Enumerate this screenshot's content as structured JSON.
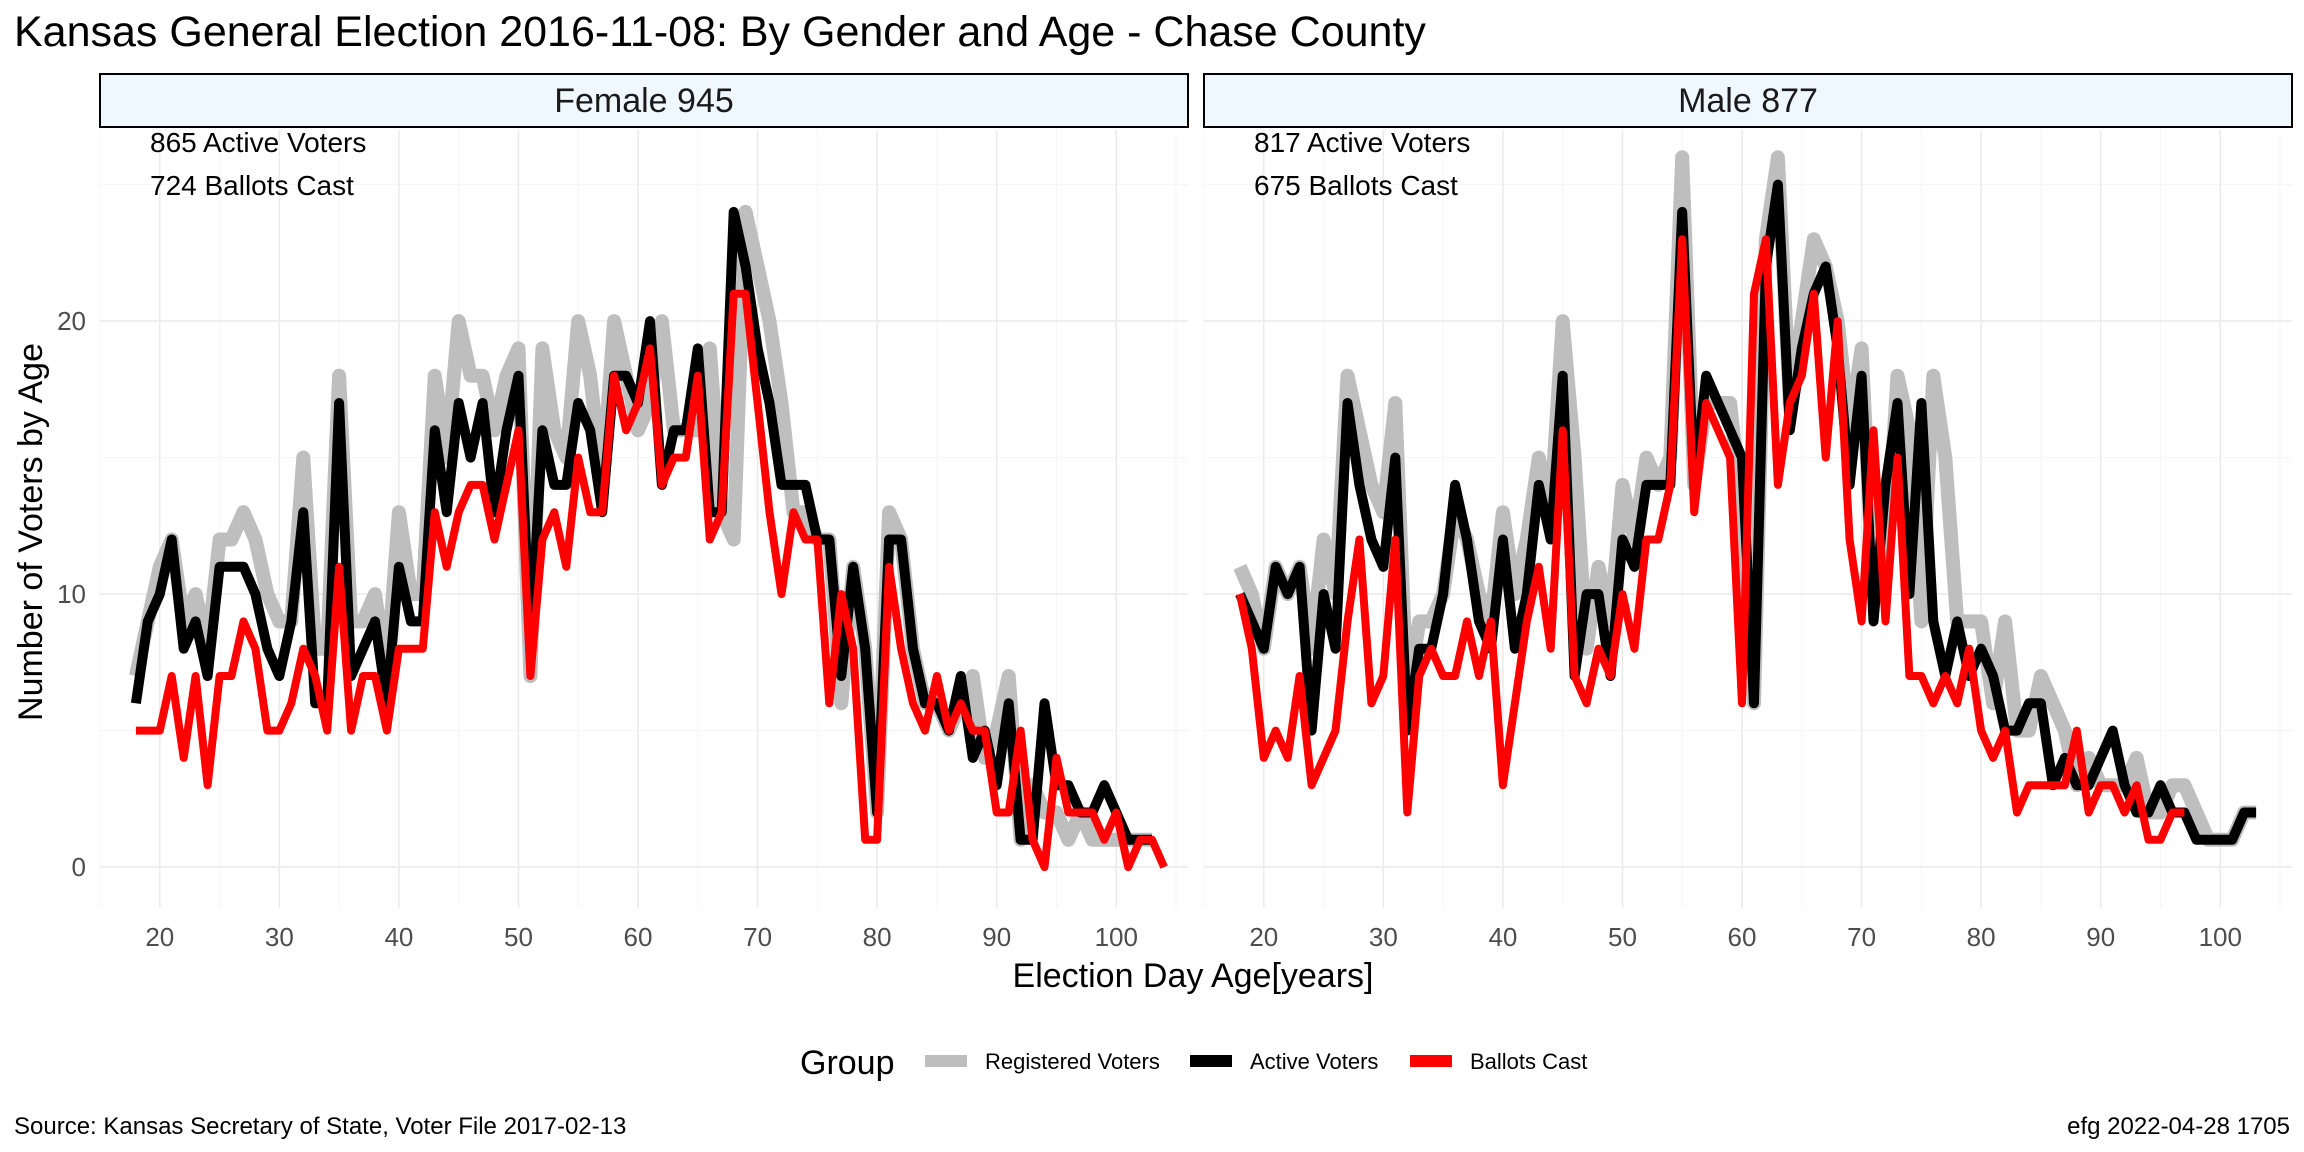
{
  "chart_data": {
    "type": "line",
    "title": "Kansas General Election 2016-11-08:  By Gender and Age - Chase County",
    "xlabel": "Election Day Age[years]",
    "ylabel": "Number of Voters by Age",
    "xlim": [
      18,
      103
    ],
    "ylim": [
      0,
      26
    ],
    "x_ticks": [
      20,
      30,
      40,
      50,
      60,
      70,
      80,
      90,
      100
    ],
    "y_ticks": [
      0,
      10,
      20
    ],
    "grid": true,
    "legend": {
      "position": "bottom",
      "title": "Group",
      "entries": [
        {
          "label": "Registered Voters",
          "color": "#bebebe"
        },
        {
          "label": "Active Voters",
          "color": "#000000"
        },
        {
          "label": "Ballots Cast",
          "color": "#ff0000"
        }
      ]
    },
    "caption_left": "Source:  Kansas Secretary of State, Voter File  2017-02-13",
    "caption_right": "efg 2022-04-28 1705",
    "panels": [
      {
        "strip": "Female 945",
        "annotations": [
          "865 Active Voters",
          "724 Ballots Cast"
        ],
        "series": [
          {
            "name": "Registered Voters",
            "color": "#bebebe",
            "x0": 18,
            "values": [
              7,
              9,
              11,
              12,
              9,
              10,
              8,
              12,
              12,
              13,
              12,
              10,
              9,
              9,
              15,
              8,
              8,
              18,
              9,
              9,
              10,
              7,
              13,
              10,
              10,
              18,
              15,
              20,
              18,
              18,
              16,
              18,
              19,
              7,
              19,
              16,
              15,
              20,
              18,
              14,
              20,
              18,
              16,
              17,
              20,
              16,
              16,
              16,
              19,
              13,
              12,
              24,
              22,
              20,
              17,
              13,
              13,
              12,
              12,
              6,
              11,
              8,
              2,
              13,
              12,
              8,
              6,
              6,
              5,
              6,
              7,
              4,
              5,
              7,
              1,
              3,
              2,
              2,
              1,
              2,
              1,
              1,
              1,
              1,
              1,
              1
            ]
          },
          {
            "name": "Active Voters",
            "color": "#000000",
            "x0": 18,
            "values": [
              6,
              9,
              10,
              12,
              8,
              9,
              7,
              11,
              11,
              11,
              10,
              8,
              7,
              9,
              13,
              6,
              6,
              17,
              7,
              8,
              9,
              6,
              11,
              9,
              9,
              16,
              13,
              17,
              15,
              17,
              13,
              16,
              18,
              8,
              16,
              14,
              14,
              17,
              16,
              13,
              18,
              18,
              17,
              20,
              14,
              16,
              16,
              19,
              13,
              13,
              24,
              22,
              19,
              17,
              14,
              14,
              14,
              12,
              12,
              7,
              11,
              8,
              2,
              12,
              12,
              8,
              6,
              6,
              5,
              7,
              4,
              5,
              3,
              6,
              1,
              1,
              6,
              3,
              3,
              2,
              2,
              3,
              2,
              1,
              1,
              1
            ]
          },
          {
            "name": "Ballots Cast",
            "color": "#ff0000",
            "x0": 18,
            "values": [
              5,
              5,
              5,
              7,
              4,
              7,
              3,
              7,
              7,
              9,
              8,
              5,
              5,
              6,
              8,
              7,
              5,
              11,
              5,
              7,
              7,
              5,
              8,
              8,
              8,
              13,
              11,
              13,
              14,
              14,
              12,
              14,
              16,
              7,
              12,
              13,
              11,
              15,
              13,
              13,
              18,
              16,
              17,
              19,
              14,
              15,
              15,
              18,
              12,
              13,
              21,
              21,
              17,
              13,
              10,
              13,
              12,
              12,
              6,
              10,
              8,
              1,
              1,
              11,
              8,
              6,
              5,
              7,
              5,
              6,
              5,
              5,
              2,
              2,
              5,
              1,
              0,
              4,
              2,
              2,
              2,
              1,
              2,
              0,
              1,
              1,
              0
            ]
          }
        ]
      },
      {
        "strip": "Male 877",
        "annotations": [
          "817 Active Voters",
          "675 Ballots Cast"
        ],
        "series": [
          {
            "name": "Registered Voters",
            "color": "#bebebe",
            "x0": 18,
            "values": [
              11,
              10,
              8,
              11,
              10,
              11,
              8,
              12,
              10,
              18,
              16,
              14,
              13,
              17,
              6,
              9,
              9,
              10,
              13,
              12,
              10,
              9,
              13,
              10,
              12,
              15,
              13,
              20,
              15,
              8,
              11,
              9,
              14,
              12,
              15,
              14,
              15,
              26,
              14,
              17,
              17,
              17,
              13,
              6,
              23,
              26,
              17,
              20,
              23,
              22,
              20,
              16,
              19,
              10,
              11,
              18,
              16,
              9,
              18,
              15,
              9,
              9,
              9,
              6,
              9,
              5,
              5,
              7,
              6,
              5,
              3,
              4,
              3,
              3,
              3,
              4,
              2,
              2,
              3,
              3,
              2,
              1,
              1,
              1,
              2,
              2
            ]
          },
          {
            "name": "Active Voters",
            "color": "#000000",
            "x0": 18,
            "values": [
              10,
              9,
              8,
              11,
              10,
              11,
              5,
              10,
              8,
              17,
              14,
              12,
              11,
              15,
              5,
              8,
              8,
              10,
              14,
              12,
              9,
              8,
              12,
              8,
              10,
              14,
              12,
              18,
              7,
              10,
              10,
              7,
              12,
              11,
              14,
              14,
              14,
              24,
              14,
              18,
              17,
              16,
              15,
              6,
              22,
              25,
              16,
              19,
              21,
              22,
              19,
              14,
              18,
              9,
              14,
              17,
              10,
              17,
              9,
              7,
              9,
              7,
              8,
              7,
              5,
              5,
              6,
              6,
              3,
              4,
              3,
              3,
              4,
              5,
              3,
              2,
              2,
              3,
              2,
              2,
              1,
              1,
              1,
              1,
              2,
              2
            ]
          },
          {
            "name": "Ballots Cast",
            "color": "#ff0000",
            "x0": 18,
            "values": [
              10,
              8,
              4,
              5,
              4,
              7,
              3,
              4,
              5,
              9,
              12,
              6,
              7,
              12,
              2,
              7,
              8,
              7,
              7,
              9,
              7,
              9,
              3,
              6,
              9,
              11,
              8,
              16,
              7,
              6,
              8,
              7,
              10,
              8,
              12,
              12,
              14,
              23,
              13,
              17,
              16,
              15,
              6,
              21,
              23,
              14,
              17,
              18,
              21,
              15,
              20,
              12,
              9,
              16,
              9,
              15,
              7,
              7,
              6,
              7,
              6,
              8,
              5,
              4,
              5,
              2,
              3,
              3,
              3,
              3,
              5,
              2,
              3,
              3,
              2,
              3,
              1,
              1,
              2,
              2
            ]
          }
        ]
      }
    ]
  }
}
